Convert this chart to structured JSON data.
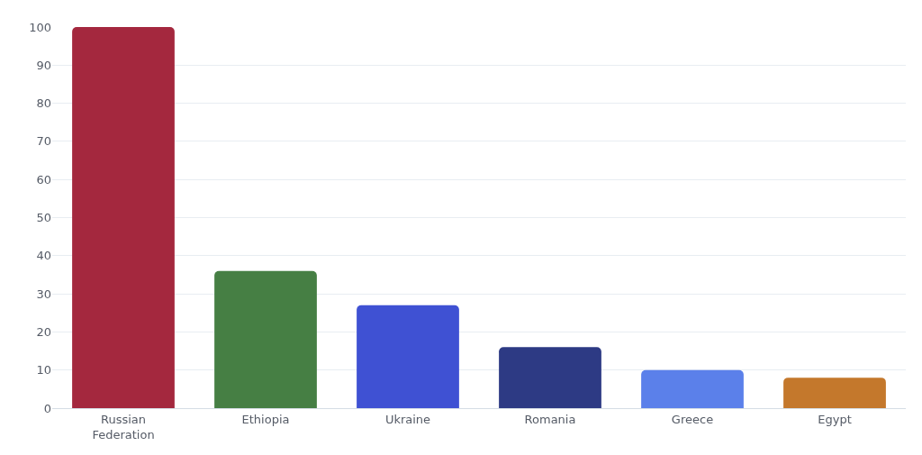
{
  "chart_data": {
    "type": "bar",
    "categories": [
      "Russian Federation",
      "Ethiopia",
      "Ukraine",
      "Romania",
      "Greece",
      "Egypt"
    ],
    "values": [
      100,
      36,
      27,
      16,
      10,
      8
    ],
    "colors": [
      "#a4283e",
      "#467f44",
      "#3f51d3",
      "#2d3a84",
      "#5b80ea",
      "#c4782c"
    ],
    "ylim": [
      0,
      100
    ],
    "yticks": [
      0,
      10,
      20,
      30,
      40,
      50,
      60,
      70,
      80,
      90,
      100
    ],
    "grid": "y"
  }
}
